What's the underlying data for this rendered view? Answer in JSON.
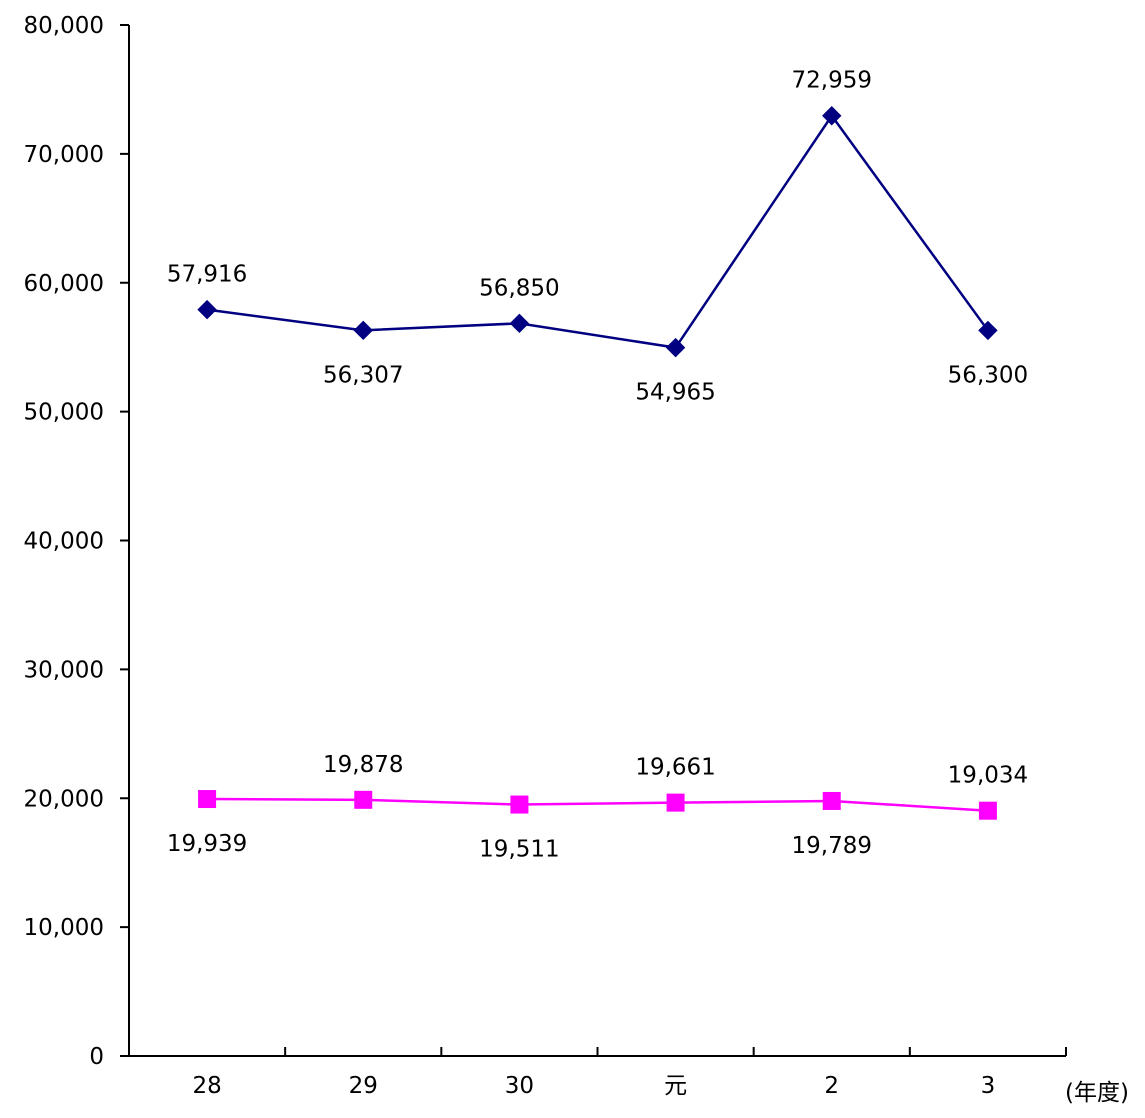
{
  "chart_data": {
    "type": "line",
    "categories": [
      "28",
      "29",
      "30",
      "元",
      "2",
      "3"
    ],
    "x_unit_label": "(年度)",
    "ylim": [
      0,
      80000
    ],
    "y_ticks": [
      0,
      10000,
      20000,
      30000,
      40000,
      50000,
      60000,
      70000,
      80000
    ],
    "y_tick_labels": [
      "0",
      "10,000",
      "20,000",
      "30,000",
      "40,000",
      "50,000",
      "60,000",
      "70,000",
      "80,000"
    ],
    "grid": false,
    "legend": "none",
    "series": [
      {
        "marker": "diamond",
        "color": "#000080",
        "values": [
          57916,
          56307,
          56850,
          54965,
          72959,
          56300
        ],
        "labels": [
          "57,916",
          "56,307",
          "56,850",
          "54,965",
          "72,959",
          "56,300"
        ],
        "label_positions": [
          "above",
          "below",
          "above",
          "below",
          "above",
          "below"
        ]
      },
      {
        "marker": "square",
        "color": "#FF00FF",
        "values": [
          19939,
          19878,
          19511,
          19661,
          19789,
          19034
        ],
        "labels": [
          "19,939",
          "19,878",
          "19,511",
          "19,661",
          "19,789",
          "19,034"
        ],
        "label_positions": [
          "below",
          "above",
          "below",
          "above",
          "below",
          "above"
        ]
      }
    ]
  }
}
